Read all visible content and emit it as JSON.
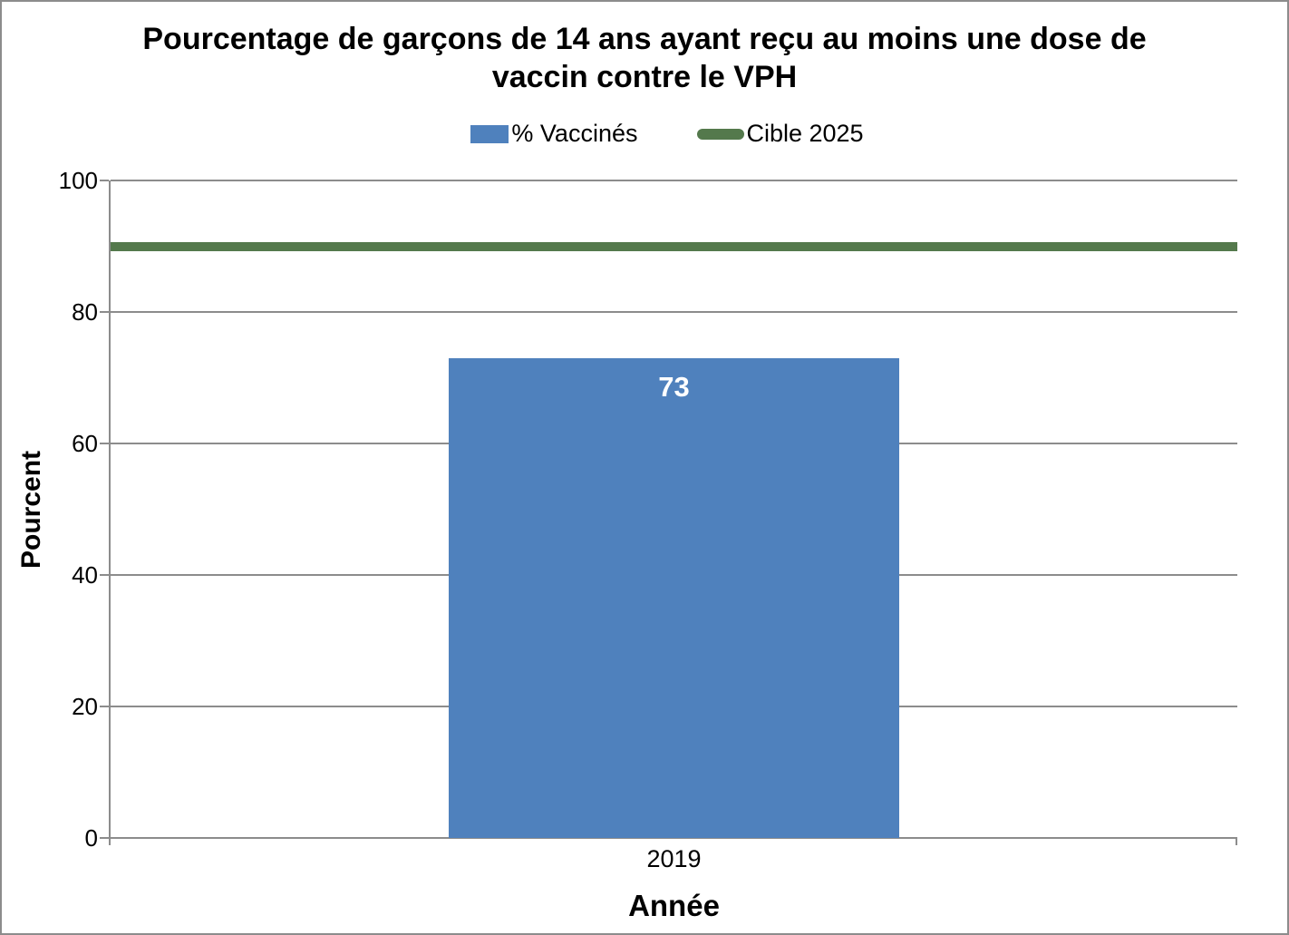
{
  "chart_data": {
    "type": "bar",
    "title": "Pourcentage de garçons de 14 ans ayant reçu au moins une dose de vaccin contre le VPH",
    "xlabel": "Année",
    "ylabel": "Pourcent",
    "ylim": [
      0,
      100
    ],
    "yticks": [
      0,
      20,
      40,
      60,
      80,
      100
    ],
    "categories": [
      "2019"
    ],
    "series": [
      {
        "name": "% Vaccinés",
        "type": "bar",
        "values": [
          73
        ],
        "color": "#4F81BD",
        "value_label_color": "#FFFFFF"
      }
    ],
    "target_line": {
      "name": "Cible 2025",
      "value": 90,
      "color": "#54794C"
    },
    "legend": [
      {
        "label": "% Vaccinés",
        "marker": "rect",
        "color": "#4F81BD"
      },
      {
        "label": "Cible 2025",
        "marker": "line",
        "color": "#54794C"
      }
    ],
    "grid": "horizontal",
    "legend_position": "top",
    "axis_color": "#8C8C8C",
    "text_color": "#000000",
    "background_color": "#FFFFFF"
  }
}
